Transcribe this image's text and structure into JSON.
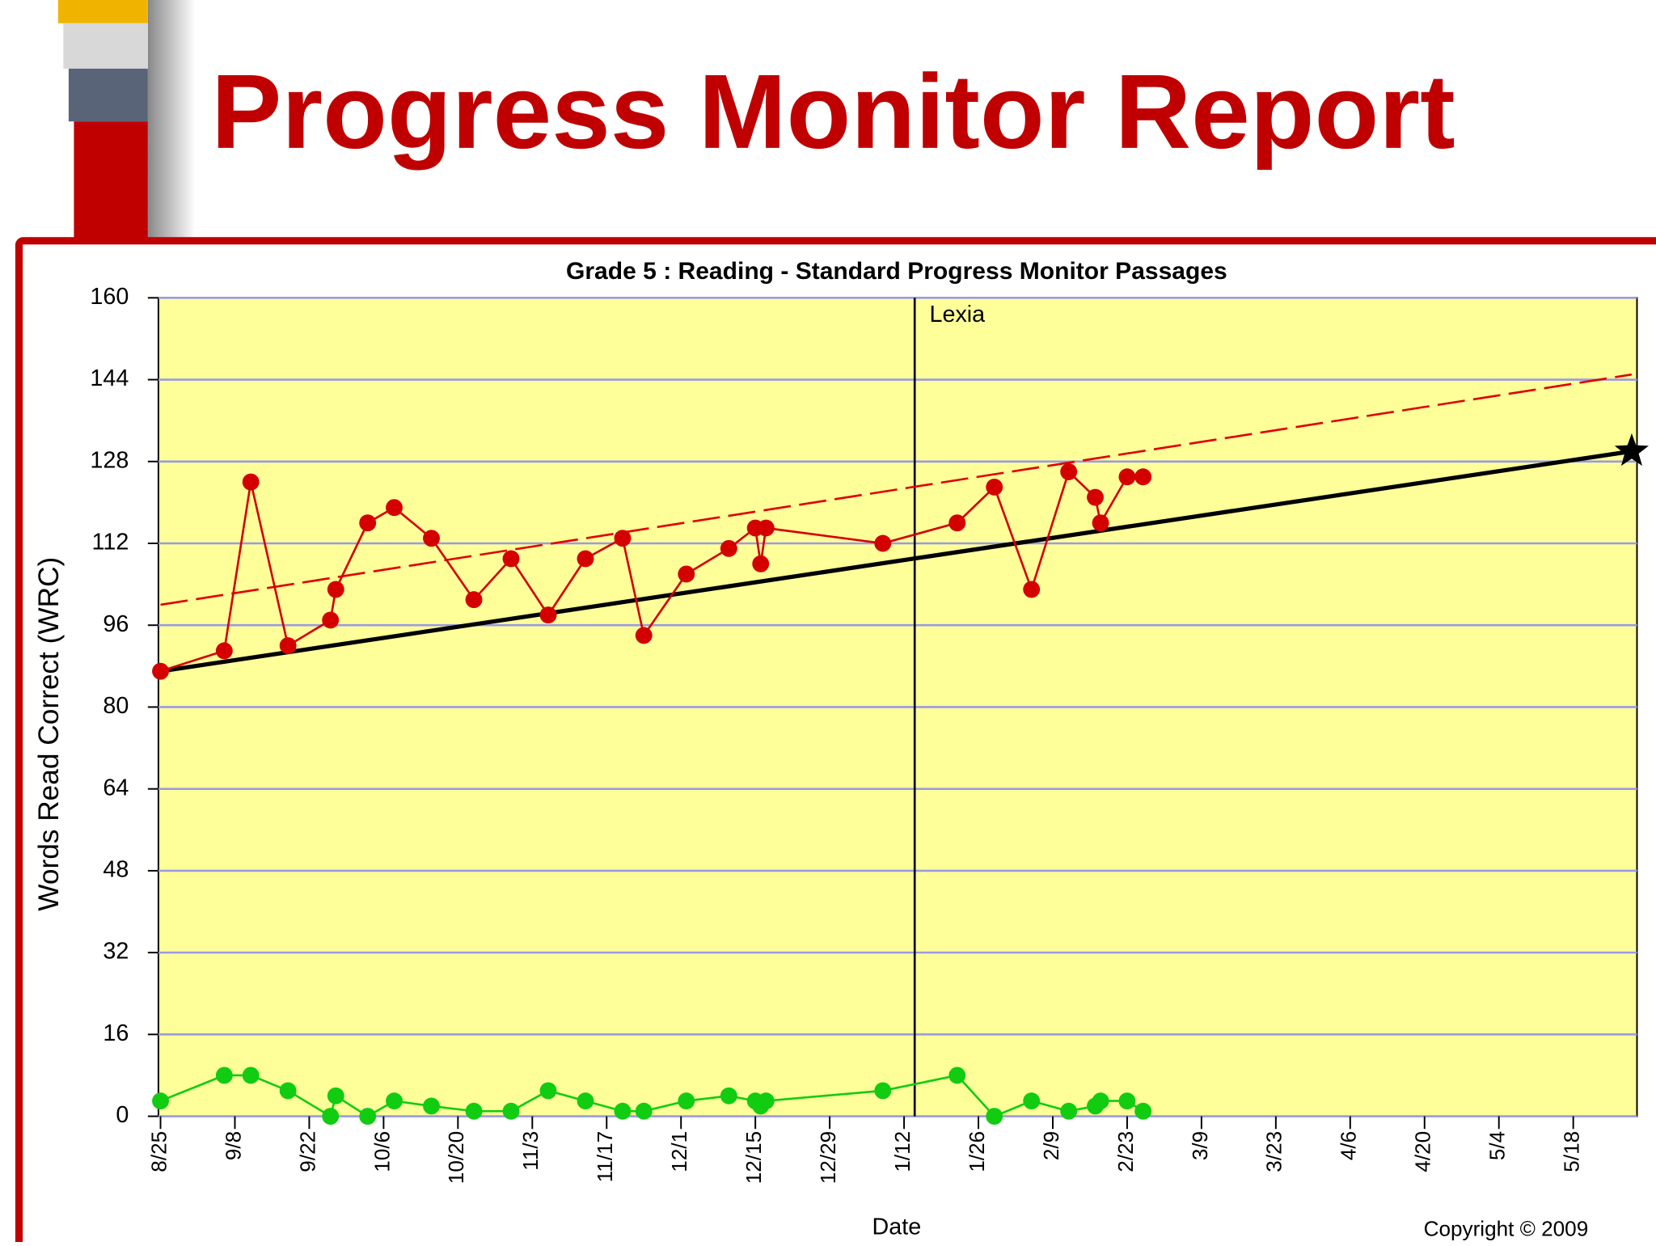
{
  "header": {
    "title": "Progress Monitor Report"
  },
  "chart_data": {
    "type": "line",
    "title": "Grade 5 : Reading - Standard Progress Monitor Passages",
    "x_label": "Date",
    "y_label": "Words Read Correct (WRC)",
    "copyright": "Copyright © 2009",
    "x": [
      "8/25",
      "9/6",
      "9/11",
      "9/18",
      "9/26",
      "9/27",
      "10/3",
      "10/8",
      "10/15",
      "10/23",
      "10/30",
      "11/6",
      "11/13",
      "11/20",
      "11/24",
      "12/2",
      "12/10",
      "12/15",
      "12/16",
      "12/17",
      "1/8",
      "1/22",
      "1/29",
      "2/5",
      "2/12",
      "2/17",
      "2/18",
      "2/23",
      "2/26"
    ],
    "series": [
      {
        "color": "#d40000",
        "values": [
          87,
          91,
          124,
          92,
          97,
          103,
          116,
          119,
          113,
          101,
          109,
          98,
          109,
          113,
          94,
          106,
          111,
          115,
          108,
          115,
          112,
          116,
          123,
          103,
          126,
          121,
          116,
          125,
          125
        ]
      },
      {
        "color": "#11cc11",
        "values": [
          3,
          8,
          8,
          5,
          0,
          4,
          0,
          3,
          2,
          1,
          1,
          5,
          3,
          1,
          1,
          3,
          4,
          3,
          2,
          3,
          5,
          8,
          0,
          3,
          1,
          2,
          3,
          3,
          1
        ]
      }
    ],
    "aim_line": {
      "x": [
        "8/25",
        "5/29"
      ],
      "values": [
        87,
        130
      ],
      "color": "#000000"
    },
    "trend_line": {
      "x": [
        "8/25",
        "5/29"
      ],
      "values": [
        100,
        145
      ],
      "color": "#e00000"
    },
    "phase_lines": [
      {
        "x": "1/14",
        "label": "Lexia"
      }
    ],
    "xlim": [
      "8/25",
      "5/30"
    ],
    "xticks": [
      "8/25",
      "9/8",
      "9/22",
      "10/6",
      "10/20",
      "11/3",
      "11/17",
      "12/1",
      "12/15",
      "12/29",
      "1/12",
      "1/26",
      "2/9",
      "2/23",
      "3/9",
      "3/23",
      "4/6",
      "4/20",
      "5/4",
      "5/18"
    ],
    "ylim": [
      0,
      160
    ],
    "yticks": [
      0,
      16,
      32,
      48,
      64,
      80,
      96,
      112,
      128,
      144,
      160
    ],
    "grid": true,
    "plot_background": "#ffff99",
    "grid_color": "#9a9ae6"
  }
}
